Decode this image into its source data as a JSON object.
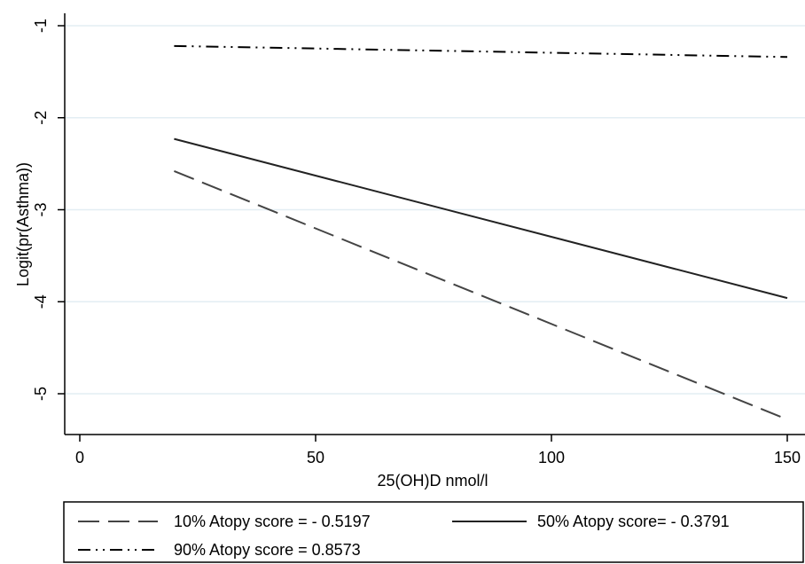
{
  "chart_data": {
    "type": "line",
    "title": "",
    "xlabel": "25(OH)D nmol/l",
    "ylabel": "Logit(pr(Asthma))",
    "xlim": [
      0,
      150
    ],
    "ylim": [
      -5.4,
      -0.85
    ],
    "x_ticks": [
      0,
      50,
      100,
      150
    ],
    "x_tick_labels": [
      "0",
      "50",
      "100",
      "150"
    ],
    "y_ticks": [
      -1,
      -2,
      -3,
      -4,
      -5
    ],
    "y_tick_labels": [
      "-1",
      "-2",
      "-3",
      "-4",
      "-5"
    ],
    "grid": "horizontal",
    "legend_position": "bottom",
    "series": [
      {
        "name": "10% Atopy score = - 0.5197",
        "style": "dashed",
        "color": "#444444",
        "x": [
          20,
          150
        ],
        "y": [
          -2.58,
          -5.28
        ]
      },
      {
        "name": "50% Atopy score= - 0.3791",
        "style": "solid",
        "color": "#222222",
        "x": [
          20,
          150
        ],
        "y": [
          -2.23,
          -3.96
        ]
      },
      {
        "name": "90% Atopy score =  0.8573",
        "style": "dashdot",
        "color": "#000000",
        "x": [
          20,
          150
        ],
        "y": [
          -1.22,
          -1.34
        ]
      }
    ]
  }
}
